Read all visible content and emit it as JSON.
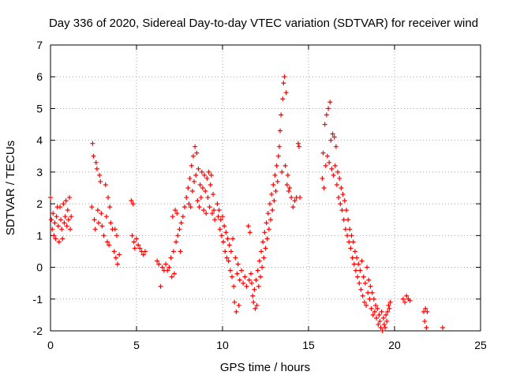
{
  "chart_data": {
    "type": "scatter",
    "title": "Day 336 of 2020, Sidereal Day-to-day VTEC variation (SDTVAR) for receiver wind",
    "xlabel": "GPS time / hours",
    "ylabel": "SDTVAR / TECUs",
    "xlim": [
      0,
      25
    ],
    "ylim": [
      -2,
      7
    ],
    "xticks": [
      "0",
      "5",
      "10",
      "15",
      "20",
      "25"
    ],
    "yticks": [
      "-2",
      "-1",
      "0",
      "1",
      "2",
      "3",
      "4",
      "5",
      "6",
      "7"
    ],
    "grid": true,
    "marker": "plus",
    "color": "#ff0000",
    "series": [
      {
        "name": "SDTVAR",
        "points": [
          [
            0.0,
            2.2
          ],
          [
            0.05,
            1.5
          ],
          [
            0.1,
            1.2
          ],
          [
            0.15,
            1.7
          ],
          [
            0.2,
            1.0
          ],
          [
            0.25,
            1.4
          ],
          [
            0.3,
            0.9
          ],
          [
            0.35,
            1.6
          ],
          [
            0.4,
            1.9
          ],
          [
            0.45,
            1.3
          ],
          [
            0.5,
            0.8
          ],
          [
            0.55,
            1.9
          ],
          [
            0.6,
            1.5
          ],
          [
            0.65,
            1.2
          ],
          [
            0.7,
            0.9
          ],
          [
            0.75,
            2.0
          ],
          [
            0.8,
            1.4
          ],
          [
            0.85,
            1.6
          ],
          [
            0.9,
            2.1
          ],
          [
            0.95,
            1.3
          ],
          [
            1.0,
            1.8
          ],
          [
            1.05,
            1.5
          ],
          [
            1.1,
            2.2
          ],
          [
            1.15,
            1.2
          ],
          [
            1.2,
            1.6
          ],
          [
            2.4,
            1.9
          ],
          [
            2.45,
            3.9
          ],
          [
            2.5,
            3.5
          ],
          [
            2.55,
            1.5
          ],
          [
            2.6,
            1.2
          ],
          [
            2.65,
            3.3
          ],
          [
            2.7,
            3.1
          ],
          [
            2.75,
            1.8
          ],
          [
            2.8,
            1.4
          ],
          [
            2.85,
            2.9
          ],
          [
            2.9,
            2.7
          ],
          [
            2.95,
            1.7
          ],
          [
            3.0,
            1.3
          ],
          [
            3.1,
            1.0
          ],
          [
            3.2,
            2.6
          ],
          [
            3.25,
            1.6
          ],
          [
            3.3,
            0.8
          ],
          [
            3.35,
            2.2
          ],
          [
            3.4,
            0.7
          ],
          [
            3.45,
            1.9
          ],
          [
            3.5,
            1.4
          ],
          [
            3.6,
            1.2
          ],
          [
            3.7,
            0.5
          ],
          [
            3.75,
            1.2
          ],
          [
            3.8,
            0.3
          ],
          [
            3.85,
            1.0
          ],
          [
            3.9,
            0.1
          ],
          [
            4.0,
            0.4
          ],
          [
            4.7,
            2.1
          ],
          [
            4.75,
            1.0
          ],
          [
            4.8,
            2.0
          ],
          [
            4.85,
            0.8
          ],
          [
            4.9,
            0.6
          ],
          [
            5.0,
            0.9
          ],
          [
            5.1,
            0.7
          ],
          [
            5.2,
            0.6
          ],
          [
            5.3,
            0.5
          ],
          [
            5.4,
            0.4
          ],
          [
            5.5,
            0.5
          ],
          [
            6.2,
            0.2
          ],
          [
            6.3,
            0.1
          ],
          [
            6.4,
            -0.6
          ],
          [
            6.5,
            0.0
          ],
          [
            6.6,
            -0.1
          ],
          [
            6.7,
            0.1
          ],
          [
            6.8,
            -0.1
          ],
          [
            6.9,
            0.0
          ],
          [
            7.0,
            0.3
          ],
          [
            7.05,
            -0.3
          ],
          [
            7.1,
            1.6
          ],
          [
            7.15,
            0.5
          ],
          [
            7.2,
            -0.2
          ],
          [
            7.25,
            1.8
          ],
          [
            7.3,
            0.8
          ],
          [
            7.35,
            1.7
          ],
          [
            7.4,
            1.0
          ],
          [
            7.5,
            1.2
          ],
          [
            7.55,
            0.5
          ],
          [
            7.6,
            1.4
          ],
          [
            7.7,
            1.6
          ],
          [
            7.8,
            1.9
          ],
          [
            7.9,
            2.2
          ],
          [
            8.0,
            2.5
          ],
          [
            8.05,
            2.0
          ],
          [
            8.1,
            2.8
          ],
          [
            8.15,
            1.9
          ],
          [
            8.2,
            3.2
          ],
          [
            8.25,
            2.4
          ],
          [
            8.3,
            3.5
          ],
          [
            8.35,
            2.7
          ],
          [
            8.4,
            3.8
          ],
          [
            8.45,
            2.9
          ],
          [
            8.5,
            3.6
          ],
          [
            8.55,
            2.1
          ],
          [
            8.6,
            3.1
          ],
          [
            8.65,
            1.9
          ],
          [
            8.7,
            2.6
          ],
          [
            8.75,
            2.2
          ],
          [
            8.8,
            3.0
          ],
          [
            8.85,
            2.5
          ],
          [
            8.9,
            1.8
          ],
          [
            8.95,
            2.9
          ],
          [
            9.0,
            2.4
          ],
          [
            9.05,
            1.7
          ],
          [
            9.1,
            2.8
          ],
          [
            9.15,
            2.2
          ],
          [
            9.2,
            3.0
          ],
          [
            9.25,
            1.9
          ],
          [
            9.3,
            2.6
          ],
          [
            9.35,
            2.9
          ],
          [
            9.4,
            1.7
          ],
          [
            9.45,
            2.3
          ],
          [
            9.5,
            1.8
          ],
          [
            9.55,
            1.5
          ],
          [
            9.7,
            2.0
          ],
          [
            9.75,
            1.6
          ],
          [
            9.8,
            1.8
          ],
          [
            9.85,
            1.2
          ],
          [
            9.9,
            1.5
          ],
          [
            9.95,
            1.0
          ],
          [
            10.0,
            1.6
          ],
          [
            10.05,
            0.8
          ],
          [
            10.1,
            1.3
          ],
          [
            10.15,
            0.5
          ],
          [
            10.2,
            1.1
          ],
          [
            10.25,
            0.3
          ],
          [
            10.3,
            0.9
          ],
          [
            10.35,
            0.2
          ],
          [
            10.4,
            0.7
          ],
          [
            10.45,
            -0.1
          ],
          [
            10.5,
            0.5
          ],
          [
            10.55,
            -0.3
          ],
          [
            10.6,
            0.9
          ],
          [
            10.65,
            -0.6
          ],
          [
            10.7,
            -1.1
          ],
          [
            10.75,
            0.3
          ],
          [
            10.8,
            -1.4
          ],
          [
            10.85,
            -0.2
          ],
          [
            10.9,
            0.1
          ],
          [
            10.95,
            -1.2
          ],
          [
            11.0,
            -0.4
          ],
          [
            11.1,
            -0.1
          ],
          [
            11.2,
            -0.5
          ],
          [
            11.3,
            -0.3
          ],
          [
            11.4,
            -0.6
          ],
          [
            11.5,
            1.3
          ],
          [
            11.55,
            -0.4
          ],
          [
            11.6,
            1.1
          ],
          [
            11.65,
            -0.2
          ],
          [
            11.7,
            -0.5
          ],
          [
            11.75,
            -0.9
          ],
          [
            11.8,
            -1.1
          ],
          [
            11.85,
            -0.7
          ],
          [
            11.9,
            -1.3
          ],
          [
            11.95,
            -0.4
          ],
          [
            12.0,
            -1.2
          ],
          [
            12.05,
            -0.1
          ],
          [
            12.1,
            -0.6
          ],
          [
            12.15,
            0.2
          ],
          [
            12.2,
            -0.3
          ],
          [
            12.25,
            0.5
          ],
          [
            12.3,
            0.0
          ],
          [
            12.35,
            0.8
          ],
          [
            12.4,
            0.3
          ],
          [
            12.45,
            1.1
          ],
          [
            12.5,
            0.6
          ],
          [
            12.55,
            1.4
          ],
          [
            12.6,
            0.9
          ],
          [
            12.65,
            1.7
          ],
          [
            12.7,
            1.2
          ],
          [
            12.75,
            2.0
          ],
          [
            12.8,
            1.5
          ],
          [
            12.85,
            2.3
          ],
          [
            12.9,
            1.8
          ],
          [
            12.95,
            2.6
          ],
          [
            13.0,
            2.1
          ],
          [
            13.05,
            2.9
          ],
          [
            13.1,
            2.4
          ],
          [
            13.15,
            3.2
          ],
          [
            13.2,
            2.7
          ],
          [
            13.25,
            3.5
          ],
          [
            13.3,
            3.8
          ],
          [
            13.35,
            4.3
          ],
          [
            13.4,
            4.8
          ],
          [
            13.45,
            3.0
          ],
          [
            13.5,
            5.3
          ],
          [
            13.55,
            5.8
          ],
          [
            13.6,
            6.0
          ],
          [
            13.65,
            3.2
          ],
          [
            13.7,
            5.5
          ],
          [
            13.75,
            2.6
          ],
          [
            13.8,
            2.9
          ],
          [
            13.85,
            2.4
          ],
          [
            13.9,
            2.5
          ],
          [
            14.0,
            2.2
          ],
          [
            14.1,
            1.9
          ],
          [
            14.2,
            2.1
          ],
          [
            14.3,
            2.2
          ],
          [
            14.4,
            3.9
          ],
          [
            14.45,
            3.8
          ],
          [
            14.5,
            2.2
          ],
          [
            15.8,
            2.8
          ],
          [
            15.85,
            3.6
          ],
          [
            15.9,
            2.5
          ],
          [
            15.95,
            4.5
          ],
          [
            16.0,
            3.2
          ],
          [
            16.05,
            4.8
          ],
          [
            16.1,
            3.5
          ],
          [
            16.15,
            5.0
          ],
          [
            16.2,
            3.3
          ],
          [
            16.25,
            5.2
          ],
          [
            16.3,
            4.0
          ],
          [
            16.35,
            3.1
          ],
          [
            16.4,
            4.2
          ],
          [
            16.45,
            2.9
          ],
          [
            16.5,
            4.1
          ],
          [
            16.55,
            3.2
          ],
          [
            16.6,
            3.8
          ],
          [
            16.65,
            2.6
          ],
          [
            16.7,
            3.0
          ],
          [
            16.75,
            2.2
          ],
          [
            16.8,
            2.8
          ],
          [
            16.85,
            2.0
          ],
          [
            16.9,
            2.5
          ],
          [
            16.95,
            1.8
          ],
          [
            17.0,
            2.3
          ],
          [
            17.05,
            1.5
          ],
          [
            17.1,
            2.1
          ],
          [
            17.15,
            1.2
          ],
          [
            17.2,
            1.8
          ],
          [
            17.25,
            1.0
          ],
          [
            17.3,
            1.5
          ],
          [
            17.35,
            0.8
          ],
          [
            17.4,
            1.2
          ],
          [
            17.45,
            0.6
          ],
          [
            17.5,
            1.0
          ],
          [
            17.55,
            0.3
          ],
          [
            17.6,
            0.8
          ],
          [
            17.65,
            0.1
          ],
          [
            17.7,
            0.5
          ],
          [
            17.75,
            -0.1
          ],
          [
            17.8,
            0.3
          ],
          [
            17.85,
            -0.3
          ],
          [
            17.9,
            0.1
          ],
          [
            17.95,
            -0.5
          ],
          [
            18.0,
            -0.1
          ],
          [
            18.05,
            -0.7
          ],
          [
            18.1,
            0.2
          ],
          [
            18.15,
            -0.9
          ],
          [
            18.2,
            -0.3
          ],
          [
            18.25,
            -1.1
          ],
          [
            18.3,
            -0.5
          ],
          [
            18.35,
            -1.2
          ],
          [
            18.4,
            0.0
          ],
          [
            18.45,
            -0.8
          ],
          [
            18.5,
            -0.4
          ],
          [
            18.55,
            -1.0
          ],
          [
            18.6,
            -0.6
          ],
          [
            18.65,
            -1.3
          ],
          [
            18.7,
            -0.8
          ],
          [
            18.75,
            -1.5
          ],
          [
            18.8,
            -1.0
          ],
          [
            18.85,
            -1.4
          ],
          [
            18.9,
            -1.2
          ],
          [
            18.95,
            -1.6
          ],
          [
            19.0,
            -1.3
          ],
          [
            19.05,
            -1.8
          ],
          [
            19.1,
            -1.5
          ],
          [
            19.15,
            -1.7
          ],
          [
            19.2,
            -1.9
          ],
          [
            19.25,
            -1.4
          ],
          [
            19.3,
            -2.0
          ],
          [
            19.35,
            -1.6
          ],
          [
            19.4,
            -1.8
          ],
          [
            19.45,
            -1.9
          ],
          [
            19.5,
            -1.5
          ],
          [
            19.55,
            -1.7
          ],
          [
            19.6,
            -1.4
          ],
          [
            19.65,
            -1.2
          ],
          [
            19.7,
            -1.3
          ],
          [
            19.75,
            -1.1
          ],
          [
            20.5,
            -1.0
          ],
          [
            20.6,
            -1.1
          ],
          [
            20.7,
            -0.9
          ],
          [
            20.8,
            -1.0
          ],
          [
            20.9,
            -1.05
          ],
          [
            21.7,
            -1.4
          ],
          [
            21.75,
            -1.7
          ],
          [
            21.8,
            -1.3
          ],
          [
            21.85,
            -1.9
          ],
          [
            21.9,
            -1.4
          ],
          [
            22.8,
            -1.9
          ]
        ]
      }
    ]
  }
}
